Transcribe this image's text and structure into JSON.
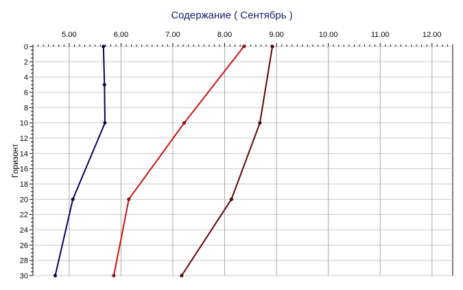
{
  "chart_data": {
    "type": "line",
    "title": "Содержание    ( Сентябрь )",
    "xlabel": "",
    "ylabel": "Горизонт",
    "x_axis_position": "top",
    "xlim": [
      4.3,
      12.4
    ],
    "ylim": [
      0,
      30
    ],
    "y_inverted": true,
    "x_ticks": [
      "5.00",
      "6.00",
      "7.00",
      "8.00",
      "9.00",
      "10.00",
      "11.00",
      "12.00"
    ],
    "x_tick_values": [
      5,
      6,
      7,
      8,
      9,
      10,
      11,
      12
    ],
    "y_ticks": [
      0,
      2,
      4,
      6,
      8,
      10,
      12,
      14,
      16,
      18,
      20,
      22,
      24,
      26,
      28,
      30
    ],
    "grid": true,
    "legend": "none",
    "series": [
      {
        "color": "#000066",
        "points": [
          [
            5.66,
            0
          ],
          [
            5.68,
            5
          ],
          [
            5.69,
            10
          ],
          [
            5.07,
            20
          ],
          [
            4.73,
            30
          ]
        ]
      },
      {
        "color": "#cc1111",
        "points": [
          [
            8.37,
            0
          ],
          [
            7.22,
            10
          ],
          [
            6.15,
            20
          ],
          [
            5.86,
            30
          ]
        ]
      },
      {
        "color": "#660000",
        "points": [
          [
            8.92,
            0
          ],
          [
            8.68,
            10
          ],
          [
            8.13,
            20
          ],
          [
            7.17,
            30
          ]
        ]
      }
    ]
  }
}
